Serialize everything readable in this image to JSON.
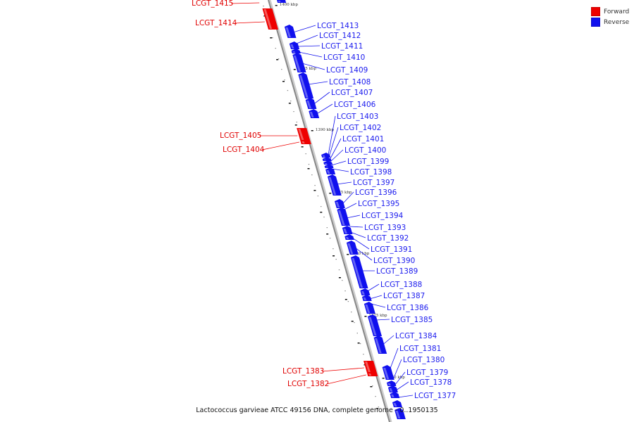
{
  "caption": "Lactococcus garvieae ATCC 49156 DNA, complete genome - 0..1950135",
  "legend": {
    "forward_label": "Forward",
    "forward_color": "#ee0000",
    "reverse_label": "Reverse",
    "reverse_color": "#1010ee"
  },
  "kbp_labels": [
    "1400 kbp",
    "1395 kbp",
    "1390 kbp",
    "1385 kbp",
    "1380 kbp",
    "1375 kbp",
    "1370 kbp"
  ],
  "forward_genes": [
    "LCGT_1415",
    "LCGT_1414",
    "LCGT_1405",
    "LCGT_1404",
    "LCGT_1383",
    "LCGT_1382"
  ],
  "reverse_genes": [
    "LCGT_1413",
    "LCGT_1412",
    "LCGT_1411",
    "LCGT_1410",
    "LCGT_1409",
    "LCGT_1408",
    "LCGT_1407",
    "LCGT_1406",
    "LCGT_1403",
    "LCGT_1402",
    "LCGT_1401",
    "LCGT_1400",
    "LCGT_1399",
    "LCGT_1398",
    "LCGT_1397",
    "LCGT_1396",
    "LCGT_1395",
    "LCGT_1394",
    "LCGT_1393",
    "LCGT_1392",
    "LCGT_1391",
    "LCGT_1390",
    "LCGT_1389",
    "LCGT_1388",
    "LCGT_1387",
    "LCGT_1386",
    "LCGT_1385",
    "LCGT_1384",
    "LCGT_1381",
    "LCGT_1380",
    "LCGT_1379",
    "LCGT_1378",
    "LCGT_1377"
  ]
}
